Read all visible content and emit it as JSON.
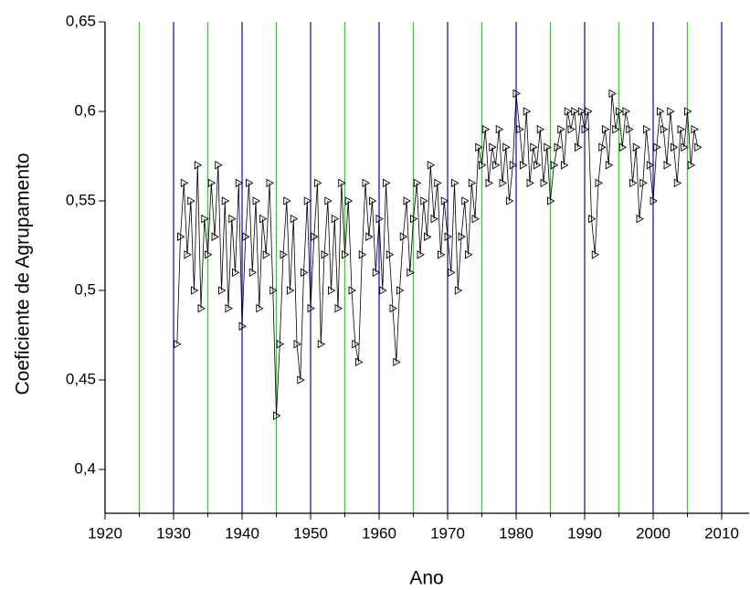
{
  "chart_data": {
    "type": "line",
    "xlabel": "Ano",
    "ylabel": "Coeficiente de Agrupamento",
    "xlim": [
      1920,
      2014
    ],
    "ylim": [
      0.3755,
      0.65
    ],
    "xticks": [
      1920,
      1930,
      1940,
      1950,
      1960,
      1970,
      1980,
      1990,
      2000,
      2010
    ],
    "xminorticks": [
      1925,
      1935,
      1945,
      1955,
      1965,
      1975,
      1985,
      1995,
      2005
    ],
    "yticks": [
      {
        "value": 0.4,
        "label": "0,4"
      },
      {
        "value": 0.45,
        "label": "0,45"
      },
      {
        "value": 0.5,
        "label": "0,5"
      },
      {
        "value": 0.55,
        "label": "0,55"
      },
      {
        "value": 0.6,
        "label": "0,6"
      },
      {
        "value": 0.65,
        "label": "0,65"
      }
    ],
    "grid": true,
    "grid_color": "#1a1acc",
    "minor_grid_color": "#33cc33",
    "marker": "triangle-right",
    "color": "#000000",
    "x": [
      1930.5,
      1931,
      1931.5,
      1932,
      1932.5,
      1933,
      1933.5,
      1934,
      1934.5,
      1935,
      1935.5,
      1936,
      1936.5,
      1937,
      1937.5,
      1938,
      1938.5,
      1939,
      1939.5,
      1940,
      1940.5,
      1941,
      1941.5,
      1942,
      1942.5,
      1943,
      1943.5,
      1944,
      1944.5,
      1945,
      1945.5,
      1946,
      1946.5,
      1947,
      1947.5,
      1948,
      1948.5,
      1949,
      1949.5,
      1950,
      1950.5,
      1951,
      1951.5,
      1952,
      1952.5,
      1953,
      1953.5,
      1954,
      1954.5,
      1955,
      1955.5,
      1956,
      1956.5,
      1957,
      1957.5,
      1958,
      1958.5,
      1959,
      1959.5,
      1960,
      1960.5,
      1961,
      1961.5,
      1962,
      1962.5,
      1963,
      1963.5,
      1964,
      1964.5,
      1965,
      1965.5,
      1966,
      1966.5,
      1967,
      1967.5,
      1968,
      1968.5,
      1969,
      1969.5,
      1970,
      1970.5,
      1971,
      1971.5,
      1972,
      1972.5,
      1973,
      1973.5,
      1974,
      1974.5,
      1975,
      1975.5,
      1976,
      1976.5,
      1977,
      1977.5,
      1978,
      1978.5,
      1979,
      1979.5,
      1980,
      1980.5,
      1981,
      1981.5,
      1982,
      1982.5,
      1983,
      1983.5,
      1984,
      1984.5,
      1985,
      1985.5,
      1986,
      1986.5,
      1987,
      1987.5,
      1988,
      1988.5,
      1989,
      1989.5,
      1990,
      1990.5,
      1991,
      1991.5,
      1992,
      1992.5,
      1993,
      1993.5,
      1994,
      1994.5,
      1995,
      1995.5,
      1996,
      1996.5,
      1997,
      1997.5,
      1998,
      1998.5,
      1999,
      1999.5,
      2000,
      2000.5,
      2001,
      2001.5,
      2002,
      2002.5,
      2003,
      2003.5,
      2004,
      2004.5,
      2005,
      2005.5,
      2006,
      2006.5
    ],
    "values": [
      0.47,
      0.53,
      0.56,
      0.52,
      0.55,
      0.5,
      0.57,
      0.49,
      0.54,
      0.52,
      0.56,
      0.53,
      0.57,
      0.5,
      0.55,
      0.49,
      0.54,
      0.51,
      0.56,
      0.48,
      0.53,
      0.56,
      0.51,
      0.55,
      0.49,
      0.54,
      0.52,
      0.56,
      0.5,
      0.43,
      0.47,
      0.52,
      0.55,
      0.5,
      0.54,
      0.47,
      0.45,
      0.51,
      0.55,
      0.49,
      0.53,
      0.56,
      0.47,
      0.52,
      0.55,
      0.5,
      0.54,
      0.49,
      0.56,
      0.52,
      0.55,
      0.5,
      0.47,
      0.46,
      0.52,
      0.56,
      0.53,
      0.55,
      0.51,
      0.54,
      0.5,
      0.56,
      0.52,
      0.49,
      0.46,
      0.5,
      0.53,
      0.55,
      0.51,
      0.54,
      0.56,
      0.52,
      0.55,
      0.53,
      0.57,
      0.54,
      0.56,
      0.52,
      0.55,
      0.53,
      0.51,
      0.56,
      0.5,
      0.53,
      0.55,
      0.52,
      0.56,
      0.54,
      0.58,
      0.57,
      0.59,
      0.56,
      0.58,
      0.57,
      0.59,
      0.56,
      0.58,
      0.55,
      0.57,
      0.61,
      0.59,
      0.57,
      0.6,
      0.56,
      0.58,
      0.57,
      0.59,
      0.56,
      0.58,
      0.55,
      0.57,
      0.58,
      0.59,
      0.57,
      0.6,
      0.59,
      0.6,
      0.58,
      0.6,
      0.59,
      0.6,
      0.54,
      0.52,
      0.56,
      0.58,
      0.59,
      0.57,
      0.61,
      0.59,
      0.6,
      0.58,
      0.6,
      0.59,
      0.56,
      0.58,
      0.54,
      0.56,
      0.59,
      0.57,
      0.55,
      0.58,
      0.6,
      0.59,
      0.57,
      0.6,
      0.58,
      0.56,
      0.59,
      0.58,
      0.6,
      0.57,
      0.59,
      0.58
    ]
  }
}
